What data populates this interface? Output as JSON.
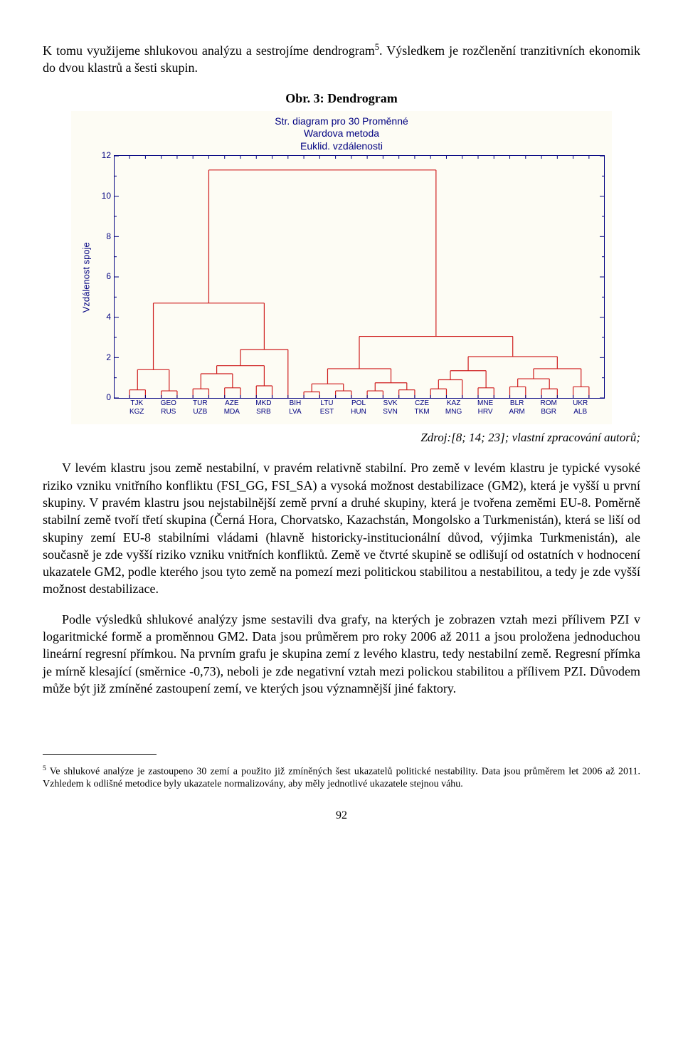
{
  "text": {
    "intro": "K tomu využijeme shlukovou analýzu a sestrojíme dendrogram",
    "intro_sup": "5",
    "intro_tail": ". Výsledkem je rozčlenění tranzitivních ekonomik do dvou klastrů a šesti skupin.",
    "figure_caption": "Obr. 3: Dendrogram",
    "source_line": "Zdroj:[8; 14; 23]; vlastní zpracování autorů;",
    "para1": "V levém klastru jsou země nestabilní, v pravém relativně stabilní. Pro země v levém klastru je typické vysoké riziko vzniku vnitřního konfliktu (FSI_GG, FSI_SA) a vysoká možnost destabilizace (GM2), která je vyšší u první skupiny. V pravém klastru jsou nejstabilnější země první a druhé skupiny, která je tvořena zeměmi EU-8. Poměrně stabilní země tvoří třetí skupina (Černá Hora, Chorvatsko, Kazachstán, Mongolsko a Turkmenistán), která se liší od skupiny zemí EU-8 stabilními vládami (hlavně historicky-institucionální důvod, výjimka Turkmenistán), ale současně je zde vyšší riziko vzniku vnitřních konfliktů. Země ve čtvrté skupině se odlišují od ostatních v hodnocení ukazatele GM2, podle kterého jsou tyto země na pomezí mezi politickou stabilitou a nestabilitou, a tedy je zde vyšší možnost destabilizace.",
    "para2": "Podle výsledků shlukové analýzy jsme sestavili dva grafy, na kterých je zobrazen vztah mezi přílivem PZI v logaritmické formě a proměnnou GM2. Data jsou průměrem pro roky 2006 až 2011 a jsou proložena jednoduchou lineární regresní přímkou. Na prvním grafu je skupina zemí z levého klastru, tedy nestabilní země. Regresní přímka je mírně klesající (směrnice -0,73), neboli je zde negativní vztah mezi polickou stabilitou a přílivem PZI. Důvodem může být již zmíněné zastoupení zemí, ve kterých jsou významnější jiné faktory.",
    "footnote_sup": "5",
    "footnote": " Ve shlukové analýze je zastoupeno 30 zemí a použito již zmíněných šest ukazatelů politické nestability. Data jsou průměrem let 2006 až 2011. Vzhledem k odlišné metodice byly ukazatele normalizovány, aby měly jednotlivé ukazatele stejnou váhu.",
    "page_number": "92"
  },
  "dendrogram": {
    "type": "dendrogram",
    "title_lines": [
      "Str. diagram pro 30  Proměnné",
      "Wardova metoda",
      "Euklid. vzdálenosti"
    ],
    "ylabel": "Vzdálenost spoje",
    "ylim": [
      0,
      12
    ],
    "yticks": [
      0,
      2,
      4,
      6,
      8,
      10,
      12
    ],
    "yticks_minor_step": 1,
    "background_color": "#fdfcf4",
    "axis_color": "#000080",
    "line_color": "#ce1d1d",
    "line_width": 1.2,
    "tick_fontsize": 12,
    "title_fontsize": 14,
    "categories_top": [
      "TJK",
      "GEO",
      "TUR",
      "AZE",
      "MKD",
      "BIH",
      "LTU",
      "POL",
      "SVK",
      "CZE",
      "KAZ",
      "MNE",
      "BLR",
      "ROM",
      "UKR"
    ],
    "categories_bottom": [
      "KGZ",
      "RUS",
      "UZB",
      "MDA",
      "SRB",
      "LVA",
      "EST",
      "HUN",
      "SVN",
      "TKM",
      "MNG",
      "HRV",
      "ARM",
      "BGR",
      "ALB"
    ],
    "leaf_order": [
      "TJK",
      "KGZ",
      "GEO",
      "RUS",
      "TUR",
      "UZB",
      "AZE",
      "MDA",
      "MKD",
      "SRB",
      "BIH",
      "LVA",
      "LTU",
      "EST",
      "POL",
      "HUN",
      "SVK",
      "SVN",
      "CZE",
      "TKM",
      "KAZ",
      "MNG",
      "MNE",
      "HRV",
      "BLR",
      "ARM",
      "ROM",
      "BGR",
      "UKR",
      "ALB"
    ],
    "merges": [
      {
        "a": 1,
        "b": 2,
        "h": 0.4
      },
      {
        "a": 3,
        "b": 4,
        "h": 0.35
      },
      {
        "a": 31,
        "b": 32,
        "h": 1.4
      },
      {
        "a": 5,
        "b": 6,
        "h": 0.45
      },
      {
        "a": 7,
        "b": 8,
        "h": 0.5
      },
      {
        "a": 34,
        "b": 35,
        "h": 1.2
      },
      {
        "a": 9,
        "b": 10,
        "h": 0.6
      },
      {
        "a": 36,
        "b": 37,
        "h": 1.6
      },
      {
        "a": 11,
        "b": 38,
        "h": 2.4
      },
      {
        "a": 33,
        "b": 39,
        "h": 4.7
      },
      {
        "a": 12,
        "b": 13,
        "h": 0.3
      },
      {
        "a": 14,
        "b": 15,
        "h": 0.35
      },
      {
        "a": 41,
        "b": 42,
        "h": 0.7
      },
      {
        "a": 16,
        "b": 17,
        "h": 0.35
      },
      {
        "a": 18,
        "b": 19,
        "h": 0.4
      },
      {
        "a": 44,
        "b": 45,
        "h": 0.75
      },
      {
        "a": 43,
        "b": 46,
        "h": 1.45
      },
      {
        "a": 20,
        "b": 21,
        "h": 0.45
      },
      {
        "a": 22,
        "b": 48,
        "h": 0.9
      },
      {
        "a": 23,
        "b": 24,
        "h": 0.5
      },
      {
        "a": 49,
        "b": 50,
        "h": 1.35
      },
      {
        "a": 25,
        "b": 26,
        "h": 0.55
      },
      {
        "a": 27,
        "b": 28,
        "h": 0.45
      },
      {
        "a": 52,
        "b": 53,
        "h": 0.95
      },
      {
        "a": 29,
        "b": 30,
        "h": 0.55
      },
      {
        "a": 54,
        "b": 55,
        "h": 1.45
      },
      {
        "a": 51,
        "b": 56,
        "h": 2.05
      },
      {
        "a": 47,
        "b": 57,
        "h": 3.05
      },
      {
        "a": 40,
        "b": 58,
        "h": 11.3
      }
    ]
  }
}
